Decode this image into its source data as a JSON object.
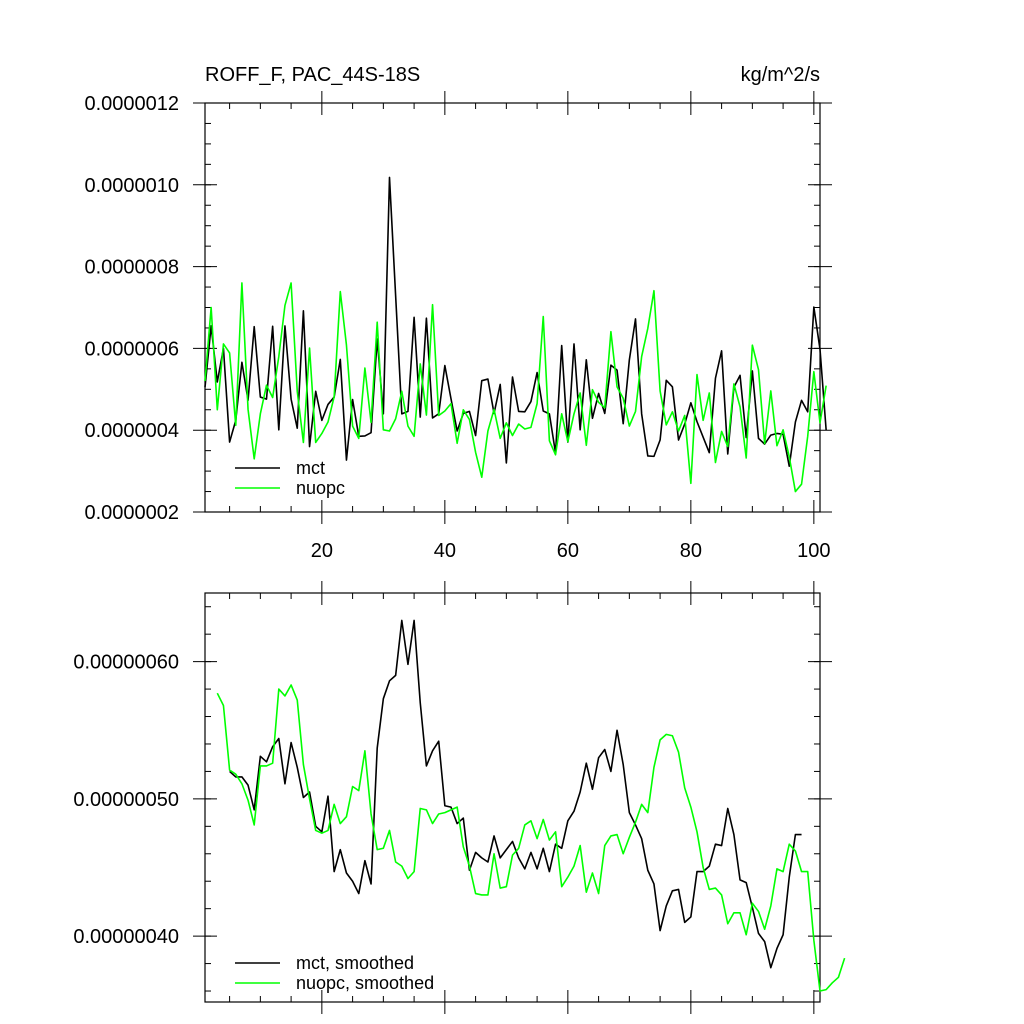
{
  "chart_data": [
    {
      "type": "line",
      "title": "ROFF_F, PAC_44S-18S",
      "units": "kg/m^2/s",
      "xlim": [
        1,
        101
      ],
      "ylim": [
        2e-07,
        1.2e-06
      ],
      "xticks": [
        20,
        40,
        60,
        80,
        100
      ],
      "xtick_labels": [
        "20",
        "40",
        "60",
        "80",
        "100"
      ],
      "yticks": [
        2e-07,
        4e-07,
        6e-07,
        8e-07,
        1e-06,
        1.2e-06
      ],
      "ytick_labels": [
        "0.0000002",
        "0.0000004",
        "0.0000006",
        "0.0000008",
        "0.0000010",
        "0.0000012"
      ],
      "legend_position": "bottom-left",
      "series": [
        {
          "name": "mct",
          "color": "#000000",
          "x_start": 1,
          "values": [
            5.05e-07,
            6.55e-07,
            5.18e-07,
            6e-07,
            3.71e-07,
            4.24e-07,
            5.66e-07,
            4.73e-07,
            6.53e-07,
            4.81e-07,
            4.76e-07,
            6.54e-07,
            4.01e-07,
            6.55e-07,
            4.76e-07,
            4.05e-07,
            6.92e-07,
            3.6e-07,
            4.95e-07,
            4.24e-07,
            4.63e-07,
            4.81e-07,
            5.73e-07,
            3.27e-07,
            4.75e-07,
            3.85e-07,
            3.86e-07,
            3.94e-07,
            6.23e-07,
            4.4e-07,
            1.018e-06,
            7.28e-07,
            4.4e-07,
            4.46e-07,
            6.76e-07,
            4.32e-07,
            6.74e-07,
            4.3e-07,
            4.4e-07,
            5.58e-07,
            4.77e-07,
            3.98e-07,
            4.41e-07,
            4.46e-07,
            3.87e-07,
            5.21e-07,
            5.25e-07,
            4.41e-07,
            5.12e-07,
            3.2e-07,
            5.3e-07,
            4.46e-07,
            4.45e-07,
            4.7e-07,
            5.41e-07,
            4.47e-07,
            4.4e-07,
            3.44e-07,
            6.07e-07,
            3.71e-07,
            6.11e-07,
            4.01e-07,
            5.72e-07,
            4.29e-07,
            4.9e-07,
            4.41e-07,
            5.59e-07,
            5.47e-07,
            4.16e-07,
            5.72e-07,
            6.72e-07,
            4.4e-07,
            3.37e-07,
            3.36e-07,
            3.76e-07,
            5.22e-07,
            5.06e-07,
            3.76e-07,
            4.15e-07,
            4.67e-07,
            4.21e-07,
            3.83e-07,
            3.45e-07,
            5.27e-07,
            5.94e-07,
            3.42e-07,
            5.05e-07,
            5.34e-07,
            3.82e-07,
            5.45e-07,
            3.8e-07,
            3.66e-07,
            3.88e-07,
            3.92e-07,
            3.9e-07,
            3.12e-07,
            4.2e-07,
            4.73e-07,
            4.45e-07,
            7.01e-07,
            5.98e-07,
            4e-07
          ]
        },
        {
          "name": "nuopc",
          "color": "#00ff00",
          "x_start": 1,
          "values": [
            5.2e-07,
            7e-07,
            4.5e-07,
            6.11e-07,
            5.89e-07,
            4.12e-07,
            7.6e-07,
            4.51e-07,
            3.3e-07,
            4.4e-07,
            5.1e-07,
            4.8e-07,
            5.8e-07,
            7.05e-07,
            7.6e-07,
            4.95e-07,
            3.7e-07,
            6.01e-07,
            3.7e-07,
            3.92e-07,
            4.2e-07,
            4.82e-07,
            7.39e-07,
            6.08e-07,
            4.1e-07,
            3.8e-07,
            5.52e-07,
            4.19e-07,
            6.64e-07,
            4.01e-07,
            3.98e-07,
            4.28e-07,
            4.95e-07,
            4.1e-07,
            3.85e-07,
            5.62e-07,
            4.37e-07,
            7.07e-07,
            4.36e-07,
            4.47e-07,
            4.65e-07,
            3.68e-07,
            4.5e-07,
            4.26e-07,
            3.46e-07,
            2.85e-07,
            3.98e-07,
            4.51e-07,
            3.8e-07,
            4.18e-07,
            3.87e-07,
            4.15e-07,
            4.03e-07,
            4.07e-07,
            4.65e-07,
            6.78e-07,
            3.74e-07,
            3.4e-07,
            4.4e-07,
            3.72e-07,
            4.4e-07,
            4.91e-07,
            3.63e-07,
            4.99e-07,
            4.68e-07,
            4.55e-07,
            6.41e-07,
            5.06e-07,
            4.78e-07,
            4.1e-07,
            4.46e-07,
            5.8e-07,
            6.49e-07,
            7.41e-07,
            4.96e-07,
            4.13e-07,
            4.45e-07,
            3.98e-07,
            4.36e-07,
            2.7e-07,
            5.36e-07,
            4.24e-07,
            4.91e-07,
            3.21e-07,
            3.97e-07,
            3.6e-07,
            5.13e-07,
            4.57e-07,
            3.32e-07,
            6.08e-07,
            5.48e-07,
            3.67e-07,
            4.96e-07,
            3.62e-07,
            4.01e-07,
            3.35e-07,
            2.5e-07,
            2.68e-07,
            3.85e-07,
            5.43e-07,
            4.18e-07,
            5.09e-07
          ]
        }
      ]
    },
    {
      "type": "line",
      "xlim": [
        1,
        101
      ],
      "ylim": [
        3.52e-07,
        6.5e-07
      ],
      "xticks": [
        20,
        40,
        60,
        80,
        100
      ],
      "yticks": [
        4e-07,
        5e-07,
        6e-07
      ],
      "ytick_labels": [
        "0.00000040",
        "0.00000050",
        "0.00000060"
      ],
      "legend_position": "bottom-left",
      "series": [
        {
          "name": "mct, smoothed",
          "color": "#000000",
          "x_start": 5,
          "values": [
            5.2e-07,
            5.16e-07,
            5.16e-07,
            5.1e-07,
            4.92e-07,
            5.31e-07,
            5.27e-07,
            5.38e-07,
            5.44e-07,
            5.11e-07,
            5.41e-07,
            5.23e-07,
            5.01e-07,
            5.05e-07,
            4.8e-07,
            4.76e-07,
            5.02e-07,
            4.47e-07,
            4.63e-07,
            4.46e-07,
            4.4e-07,
            4.31e-07,
            4.55e-07,
            4.38e-07,
            5.37e-07,
            5.73e-07,
            5.86e-07,
            5.9e-07,
            6.3e-07,
            5.98e-07,
            6.3e-07,
            5.7e-07,
            5.24e-07,
            5.35e-07,
            5.42e-07,
            4.95e-07,
            4.94e-07,
            4.82e-07,
            4.86e-07,
            4.48e-07,
            4.61e-07,
            4.57e-07,
            4.54e-07,
            4.73e-07,
            4.57e-07,
            4.63e-07,
            4.69e-07,
            4.57e-07,
            4.49e-07,
            4.61e-07,
            4.49e-07,
            4.64e-07,
            4.47e-07,
            4.67e-07,
            4.64e-07,
            4.84e-07,
            4.91e-07,
            5.05e-07,
            5.26e-07,
            5.07e-07,
            5.3e-07,
            5.36e-07,
            5.2e-07,
            5.5e-07,
            5.25e-07,
            4.9e-07,
            4.81e-07,
            4.71e-07,
            4.48e-07,
            4.38e-07,
            4.04e-07,
            4.22e-07,
            4.33e-07,
            4.34e-07,
            4.1e-07,
            4.14e-07,
            4.47e-07,
            4.47e-07,
            4.51e-07,
            4.67e-07,
            4.66e-07,
            4.93e-07,
            4.74e-07,
            4.41e-07,
            4.39e-07,
            4.21e-07,
            4.02e-07,
            3.96e-07,
            3.77e-07,
            3.91e-07,
            4.01e-07,
            4.43e-07,
            4.74e-07,
            4.74e-07
          ]
        },
        {
          "name": "nuopc, smoothed",
          "color": "#00ff00",
          "x_start": 3,
          "values": [
            5.77e-07,
            5.68e-07,
            5.21e-07,
            5.18e-07,
            5.11e-07,
            4.99e-07,
            4.81e-07,
            5.24e-07,
            5.24e-07,
            5.26e-07,
            5.8e-07,
            5.75e-07,
            5.83e-07,
            5.72e-07,
            5.25e-07,
            5e-07,
            4.77e-07,
            4.75e-07,
            4.77e-07,
            4.96e-07,
            4.82e-07,
            4.87e-07,
            5.09e-07,
            5.06e-07,
            5.35e-07,
            4.89e-07,
            4.63e-07,
            4.64e-07,
            4.77e-07,
            4.54e-07,
            4.51e-07,
            4.42e-07,
            4.47e-07,
            4.93e-07,
            4.92e-07,
            4.82e-07,
            4.89e-07,
            4.9e-07,
            4.92e-07,
            4.94e-07,
            4.65e-07,
            4.51e-07,
            4.31e-07,
            4.3e-07,
            4.3e-07,
            4.6e-07,
            4.35e-07,
            4.36e-07,
            4.59e-07,
            4.64e-07,
            4.81e-07,
            4.84e-07,
            4.71e-07,
            4.85e-07,
            4.7e-07,
            4.76e-07,
            4.36e-07,
            4.43e-07,
            4.51e-07,
            4.66e-07,
            4.32e-07,
            4.46e-07,
            4.31e-07,
            4.66e-07,
            4.73e-07,
            4.74e-07,
            4.6e-07,
            4.72e-07,
            4.83e-07,
            4.96e-07,
            4.9e-07,
            5.23e-07,
            5.43e-07,
            5.47e-07,
            5.46e-07,
            5.34e-07,
            5.08e-07,
            4.94e-07,
            4.76e-07,
            4.5e-07,
            4.34e-07,
            4.35e-07,
            4.3e-07,
            4.09e-07,
            4.17e-07,
            4.17e-07,
            4.01e-07,
            4.24e-07,
            4.18e-07,
            4.05e-07,
            4.22e-07,
            4.49e-07,
            4.47e-07,
            4.67e-07,
            4.62e-07,
            4.47e-07,
            4.47e-07,
            3.97e-07,
            3.6e-07,
            3.61e-07,
            3.66e-07,
            3.7e-07,
            3.84e-07
          ]
        }
      ]
    }
  ]
}
